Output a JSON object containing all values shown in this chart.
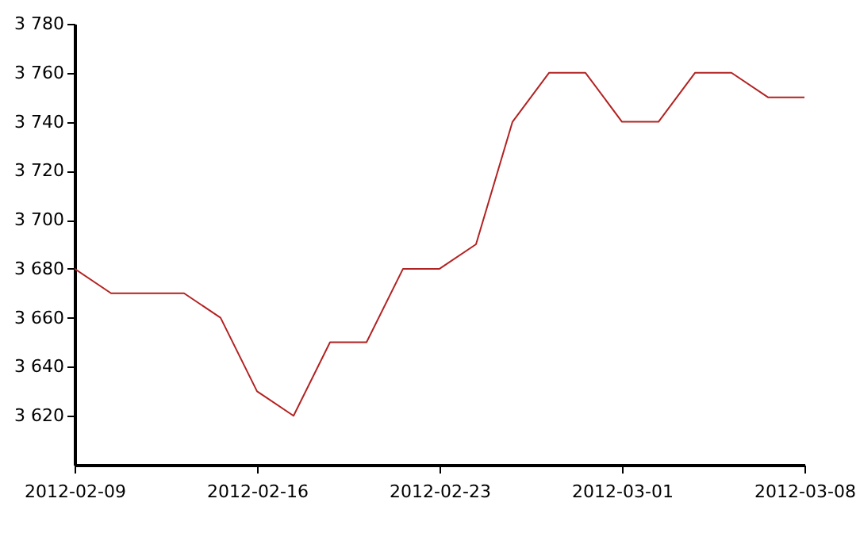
{
  "chart_data": {
    "type": "line",
    "categories": [
      "2012-02-09",
      null,
      null,
      null,
      null,
      "2012-02-16",
      null,
      null,
      null,
      null,
      "2012-02-23",
      null,
      null,
      null,
      null,
      "2012-03-01",
      null,
      null,
      null,
      null,
      "2012-03-08"
    ],
    "series": [
      {
        "color": "#b22222",
        "values": [
          3680,
          3670,
          3670,
          3670,
          3660,
          3630,
          3620,
          3650,
          3650,
          3680,
          3680,
          3690,
          3740,
          3760,
          3760,
          3740,
          3740,
          3760,
          3760,
          3750,
          3750
        ]
      }
    ],
    "ylim": [
      3600,
      3780
    ],
    "yticks": [
      {
        "value": 3620,
        "label": "3 620"
      },
      {
        "value": 3640,
        "label": "3 640"
      },
      {
        "value": 3660,
        "label": "3 660"
      },
      {
        "value": 3680,
        "label": "3 680"
      },
      {
        "value": 3700,
        "label": "3 700"
      },
      {
        "value": 3720,
        "label": "3 720"
      },
      {
        "value": 3740,
        "label": "3 740"
      },
      {
        "value": 3760,
        "label": "3 760"
      },
      {
        "value": 3780,
        "label": "3 780"
      }
    ]
  }
}
